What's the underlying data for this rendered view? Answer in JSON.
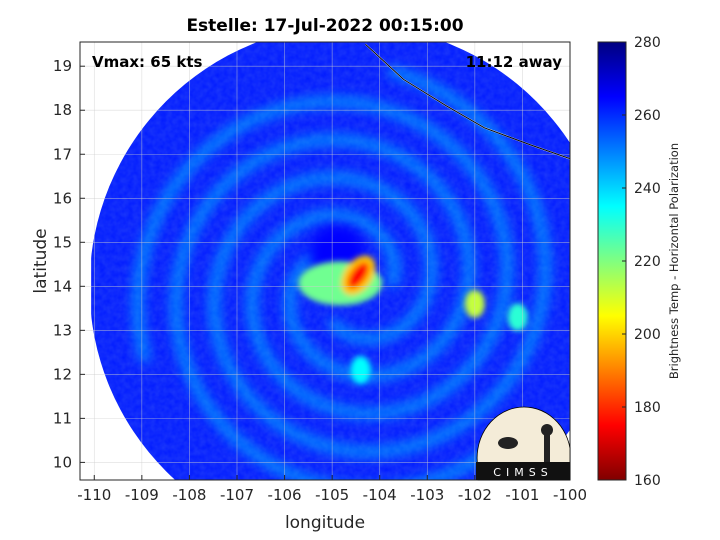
{
  "chart_data": {
    "type": "heatmap",
    "title": "Estelle: 17-Jul-2022 00:15:00",
    "xlabel": "longitude",
    "ylabel": "latitude",
    "xlim": [
      -110.3,
      -100
    ],
    "ylim": [
      9.6,
      19.55
    ],
    "xticks": [
      -110,
      -109,
      -108,
      -107,
      -106,
      -105,
      -104,
      -103,
      -102,
      -101,
      -100
    ],
    "yticks": [
      10,
      11,
      12,
      13,
      14,
      15,
      16,
      17,
      18,
      19
    ],
    "xtick_labels": [
      "-110",
      "-109",
      "-108",
      "-107",
      "-106",
      "-105",
      "-104",
      "-103",
      "-102",
      "-101",
      "-100"
    ],
    "ytick_labels": [
      "10",
      "11",
      "12",
      "13",
      "14",
      "15",
      "16",
      "17",
      "18",
      "19"
    ],
    "grid": true,
    "storm_center": {
      "lon": -104.6,
      "lat": 14.0
    },
    "swath_radius_deg": 5.5,
    "annotations": {
      "vmax": "Vmax: 65 kts",
      "time_away": "11:12 away"
    },
    "colorbar": {
      "label": "Brightness Temp - Horizontal Polarization",
      "min": 160,
      "max": 280,
      "ticks": [
        160,
        180,
        200,
        220,
        240,
        260,
        280
      ],
      "tick_labels": [
        "160",
        "180",
        "200",
        "220",
        "240",
        "260",
        "280"
      ],
      "colormap": "jet",
      "colors": [
        "#800000",
        "#ff0000",
        "#ff8000",
        "#ffff00",
        "#80ff80",
        "#00ffff",
        "#0080ff",
        "#0000ff",
        "#000080"
      ]
    },
    "features": [
      {
        "name": "eyewall",
        "lon": -104.45,
        "lat": 14.25,
        "tb": 175
      },
      {
        "name": "eye",
        "lon": -104.9,
        "lat": 14.75,
        "tb": 265
      },
      {
        "name": "convective band",
        "lon": -102.0,
        "lat": 13.6,
        "tb": 212
      },
      {
        "name": "outer band",
        "lon": -101.1,
        "lat": 13.3,
        "tb": 230
      },
      {
        "name": "southern band",
        "lon": -104.4,
        "lat": 12.1,
        "tb": 235
      }
    ],
    "coastline": [
      [
        -104.3,
        19.5
      ],
      [
        -104.0,
        19.2
      ],
      [
        -103.5,
        18.7
      ],
      [
        -102.6,
        18.1
      ],
      [
        -101.8,
        17.6
      ],
      [
        -100.8,
        17.2
      ],
      [
        -100.0,
        16.9
      ]
    ],
    "logo_text": "CIMSS"
  }
}
